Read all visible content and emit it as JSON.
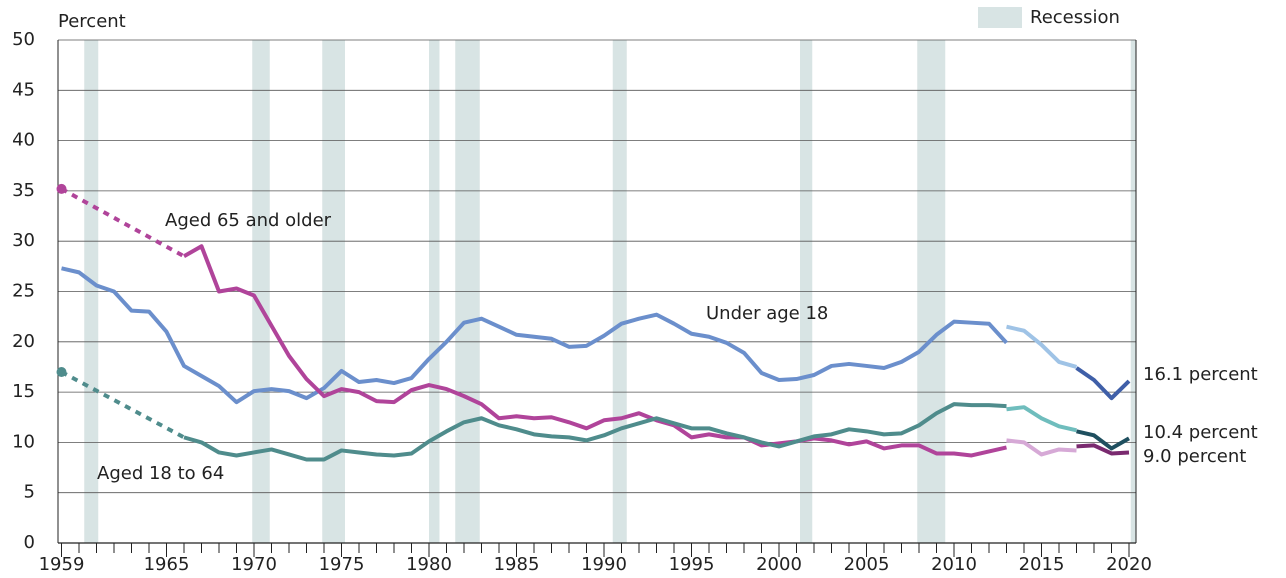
{
  "chart_data": {
    "type": "line",
    "y_label": "Percent",
    "ylim": [
      0,
      50
    ],
    "yticks": [
      0,
      5,
      10,
      15,
      20,
      25,
      30,
      35,
      40,
      45,
      50
    ],
    "xlim": [
      1958.8,
      2020.4
    ],
    "xticks": [
      1959,
      1965,
      1970,
      1975,
      1980,
      1985,
      1990,
      1995,
      2000,
      2005,
      2010,
      2015,
      2020
    ],
    "xminorticks": [
      1959,
      1960,
      1961,
      1962,
      1963,
      1964,
      1965,
      1966,
      1967,
      1968,
      1969,
      1970,
      1971,
      1972,
      1973,
      1974,
      1975,
      1976,
      1977,
      1978,
      1979,
      1980,
      1981,
      1982,
      1983,
      1984,
      1985,
      1986,
      1987,
      1988,
      1989,
      1990,
      1991,
      1992,
      1993,
      1994,
      1995,
      1996,
      1997,
      1998,
      1999,
      2000,
      2001,
      2002,
      2003,
      2004,
      2005,
      2006,
      2007,
      2008,
      2009,
      2010,
      2011,
      2012,
      2013,
      2014,
      2015,
      2016,
      2017,
      2018,
      2019,
      2020
    ],
    "grid": true,
    "recession_label": "Recession",
    "recession_color": "#d8e4e4",
    "recessions": [
      [
        1960.3,
        1961.1
      ],
      [
        1969.9,
        1970.9
      ],
      [
        1973.9,
        1975.2
      ],
      [
        1980.0,
        1980.6
      ],
      [
        1981.5,
        1982.9
      ],
      [
        1990.5,
        1991.3
      ],
      [
        2001.2,
        2001.9
      ],
      [
        2007.9,
        2009.5
      ],
      [
        2020.1,
        2020.4
      ]
    ],
    "series": [
      {
        "name": "Under age 18",
        "color": "#6b8fcc",
        "x": [
          1959,
          1960,
          1961,
          1962,
          1963,
          1964,
          1965,
          1966,
          1967,
          1968,
          1969,
          1970,
          1971,
          1972,
          1973,
          1974,
          1975,
          1976,
          1977,
          1978,
          1979,
          1980,
          1981,
          1982,
          1983,
          1984,
          1985,
          1986,
          1987,
          1988,
          1989,
          1990,
          1991,
          1992,
          1993,
          1994,
          1995,
          1996,
          1997,
          1998,
          1999,
          2000,
          2001,
          2002,
          2003,
          2004,
          2005,
          2006,
          2007,
          2008,
          2009,
          2010,
          2011,
          2012,
          2013
        ],
        "values": [
          27.3,
          26.9,
          25.6,
          25.0,
          23.1,
          23.0,
          21.0,
          17.6,
          16.6,
          15.6,
          14.0,
          15.1,
          15.3,
          15.1,
          14.4,
          15.4,
          17.1,
          16.0,
          16.2,
          15.9,
          16.4,
          18.3,
          20.0,
          21.9,
          22.3,
          21.5,
          20.7,
          20.5,
          20.3,
          19.5,
          19.6,
          20.6,
          21.8,
          22.3,
          22.7,
          21.8,
          20.8,
          20.5,
          19.9,
          18.9,
          16.9,
          16.2,
          16.3,
          16.7,
          17.6,
          17.8,
          17.6,
          17.4,
          18.0,
          19.0,
          20.7,
          22.0,
          21.9,
          21.8,
          19.9
        ]
      },
      {
        "color": "#9fc3e6",
        "x": [
          2013,
          2014,
          2015,
          2016,
          2017
        ],
        "values": [
          21.5,
          21.1,
          19.7,
          18.0,
          17.5
        ]
      },
      {
        "color": "#3f5fa8",
        "x": [
          2017,
          2018,
          2019,
          2020
        ],
        "values": [
          17.4,
          16.2,
          14.4,
          16.1
        ]
      },
      {
        "name": "Aged 65 and older",
        "color": "#b0449a",
        "style": "dotted",
        "start_marker": true,
        "x": [
          1959,
          1966
        ],
        "values": [
          35.2,
          28.5
        ]
      },
      {
        "color": "#b0449a",
        "x": [
          1966,
          1967,
          1968,
          1969,
          1970,
          1971,
          1972,
          1973,
          1974,
          1975,
          1976,
          1977,
          1978,
          1979,
          1980,
          1981,
          1982,
          1983,
          1984,
          1985,
          1986,
          1987,
          1988,
          1989,
          1990,
          1991,
          1992,
          1993,
          1994,
          1995,
          1996,
          1997,
          1998,
          1999,
          2000,
          2001,
          2002,
          2003,
          2004,
          2005,
          2006,
          2007,
          2008,
          2009,
          2010,
          2011,
          2012,
          2013
        ],
        "values": [
          28.5,
          29.5,
          25.0,
          25.3,
          24.6,
          21.6,
          18.6,
          16.3,
          14.6,
          15.3,
          15.0,
          14.1,
          14.0,
          15.2,
          15.7,
          15.3,
          14.6,
          13.8,
          12.4,
          12.6,
          12.4,
          12.5,
          12.0,
          11.4,
          12.2,
          12.4,
          12.9,
          12.2,
          11.7,
          10.5,
          10.8,
          10.5,
          10.5,
          9.7,
          9.9,
          10.1,
          10.4,
          10.2,
          9.8,
          10.1,
          9.4,
          9.7,
          9.7,
          8.9,
          8.9,
          8.7,
          9.1,
          9.5
        ]
      },
      {
        "color": "#d6a9d6",
        "x": [
          2013,
          2014,
          2015,
          2016,
          2017
        ],
        "values": [
          10.2,
          10.0,
          8.8,
          9.3,
          9.2
        ]
      },
      {
        "color": "#7a2a6f",
        "x": [
          2017,
          2018,
          2019,
          2020
        ],
        "values": [
          9.6,
          9.7,
          8.9,
          9.0
        ]
      },
      {
        "name": "Aged 18 to 64",
        "color": "#4f8c8c",
        "style": "dotted",
        "start_marker": true,
        "x": [
          1959,
          1966
        ],
        "values": [
          17.0,
          10.5
        ]
      },
      {
        "color": "#4f8c8c",
        "x": [
          1966,
          1967,
          1968,
          1969,
          1970,
          1971,
          1972,
          1973,
          1974,
          1975,
          1976,
          1977,
          1978,
          1979,
          1980,
          1981,
          1982,
          1983,
          1984,
          1985,
          1986,
          1987,
          1988,
          1989,
          1990,
          1991,
          1992,
          1993,
          1994,
          1995,
          1996,
          1997,
          1998,
          1999,
          2000,
          2001,
          2002,
          2003,
          2004,
          2005,
          2006,
          2007,
          2008,
          2009,
          2010,
          2011,
          2012,
          2013
        ],
        "values": [
          10.5,
          10.0,
          9.0,
          8.7,
          9.0,
          9.3,
          8.8,
          8.3,
          8.3,
          9.2,
          9.0,
          8.8,
          8.7,
          8.9,
          10.1,
          11.1,
          12.0,
          12.4,
          11.7,
          11.3,
          10.8,
          10.6,
          10.5,
          10.2,
          10.7,
          11.4,
          11.9,
          12.4,
          11.9,
          11.4,
          11.4,
          10.9,
          10.5,
          10.0,
          9.6,
          10.1,
          10.6,
          10.8,
          11.3,
          11.1,
          10.8,
          10.9,
          11.7,
          12.9,
          13.8,
          13.7,
          13.7,
          13.6
        ]
      },
      {
        "color": "#6fbdbd",
        "x": [
          2013,
          2014,
          2015,
          2016,
          2017
        ],
        "values": [
          13.3,
          13.5,
          12.4,
          11.6,
          11.2
        ]
      },
      {
        "color": "#1f4f5f",
        "x": [
          2017,
          2018,
          2019,
          2020
        ],
        "values": [
          11.1,
          10.7,
          9.4,
          10.4
        ]
      }
    ],
    "annotations": [
      "Aged 65 and older",
      "Under age 18",
      "Aged 18 to 64",
      "16.1 percent",
      "10.4 percent",
      "9.0 percent"
    ]
  }
}
